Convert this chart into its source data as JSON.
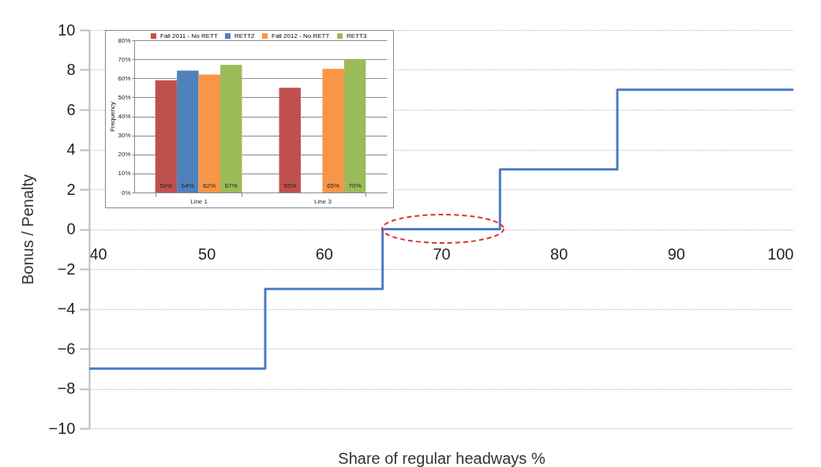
{
  "chart_data": [
    {
      "type": "step",
      "xlabel": "Share of regular headways %",
      "ylabel": "Bonus / Penalty",
      "x": [
        40,
        55,
        65,
        75,
        85,
        100
      ],
      "values": [
        -7,
        -3,
        0,
        3,
        7,
        7
      ],
      "color": "#4a7cc7",
      "xlim": [
        40,
        100
      ],
      "xticks": [
        40,
        50,
        60,
        70,
        80,
        90,
        100
      ],
      "ylim": [
        -10,
        10
      ],
      "yticks": [
        -10,
        -8,
        -6,
        -4,
        -2,
        0,
        2,
        4,
        6,
        8,
        10
      ],
      "grid": "y"
    },
    {
      "type": "bar",
      "ylabel": "Frequency",
      "categories": [
        "Line 1",
        "Line 3"
      ],
      "series": [
        {
          "name": "Fall 2011 - No RETT",
          "color": "#c0504d",
          "values": [
            59,
            55
          ],
          "value_labels": [
            "59%",
            "55%"
          ]
        },
        {
          "name": "RETT2",
          "color": "#4f81bd",
          "values": [
            64,
            null
          ],
          "value_labels": [
            "64%",
            null
          ]
        },
        {
          "name": "Fall 2012 - No RETT",
          "color": "#f79646",
          "values": [
            62,
            65
          ],
          "value_labels": [
            "62%",
            "65%"
          ]
        },
        {
          "name": "RETT3",
          "color": "#9bbb59",
          "values": [
            67,
            70
          ],
          "value_labels": [
            "67%",
            "70%"
          ]
        }
      ],
      "ylim": [
        0,
        80
      ],
      "yticks": [
        {
          "value": 0,
          "label": "0%"
        },
        {
          "value": 10,
          "label": "10%"
        },
        {
          "value": 20,
          "label": "20%"
        },
        {
          "value": 30,
          "label": "30%"
        },
        {
          "value": 40,
          "label": "40%"
        },
        {
          "value": 50,
          "label": "50%"
        },
        {
          "value": 60,
          "label": "60%"
        },
        {
          "value": 70,
          "label": "70%"
        },
        {
          "value": 80,
          "label": "80%"
        }
      ],
      "grid": "y",
      "legend": "top"
    }
  ]
}
